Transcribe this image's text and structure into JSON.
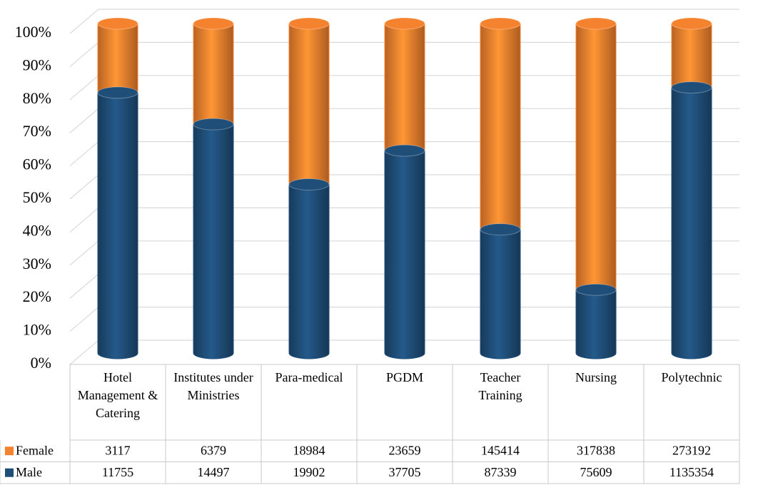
{
  "chart_data": {
    "type": "bar",
    "stack": "percent",
    "categories": [
      "Hotel Management & Catering",
      "Institutes under Ministries",
      "Para-medical",
      "PGDM",
      "Teacher Training",
      "Nursing",
      "Polytechnic"
    ],
    "series": [
      {
        "name": "Female",
        "color": "#f5822e",
        "values": [
          3117,
          6379,
          18984,
          23659,
          145414,
          317838,
          273192
        ]
      },
      {
        "name": "Male",
        "color": "#1f4e79",
        "values": [
          11755,
          14497,
          19902,
          37705,
          87339,
          75609,
          1135354
        ]
      }
    ],
    "ylim": [
      0,
      100
    ],
    "yticks": [
      {
        "value": 0,
        "label": "0%"
      },
      {
        "value": 10,
        "label": "10%"
      },
      {
        "value": 20,
        "label": "20%"
      },
      {
        "value": 30,
        "label": "30%"
      },
      {
        "value": 40,
        "label": "40%"
      },
      {
        "value": 50,
        "label": "50%"
      },
      {
        "value": 60,
        "label": "60%"
      },
      {
        "value": 70,
        "label": "70%"
      },
      {
        "value": 80,
        "label": "80%"
      },
      {
        "value": 90,
        "label": "90%"
      },
      {
        "value": 100,
        "label": "100%"
      }
    ],
    "grid": true
  }
}
